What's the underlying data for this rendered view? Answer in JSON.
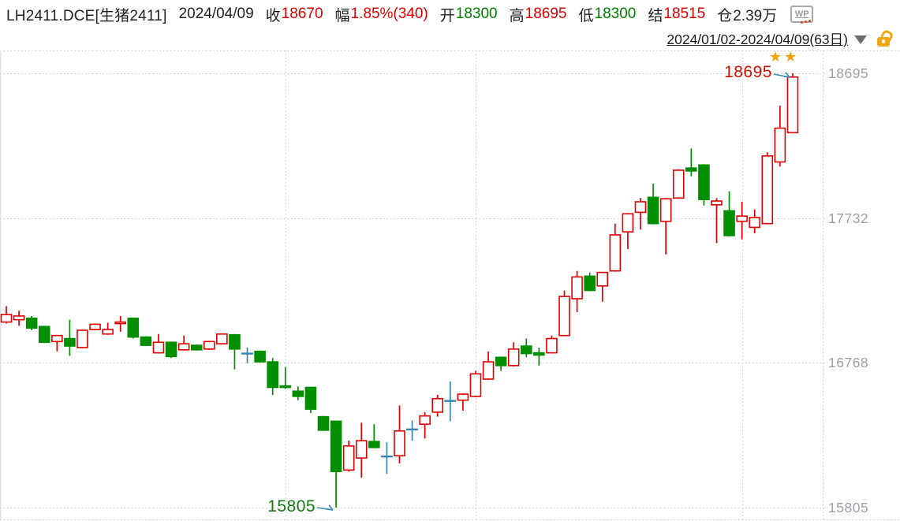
{
  "header": {
    "symbol": "LH2411.DCE[生猪2411]",
    "date": "2024/04/09",
    "fields": [
      {
        "label": "收",
        "value": "18670",
        "color": "#e10000"
      },
      {
        "label": "幅",
        "value": "1.85%(340)",
        "color": "#e10000"
      },
      {
        "label": "开",
        "value": "18300",
        "color": "#008000"
      },
      {
        "label": "高",
        "value": "18695",
        "color": "#e10000"
      },
      {
        "label": "低",
        "value": "18300",
        "color": "#008000"
      },
      {
        "label": "结",
        "value": "18515",
        "color": "#e10000"
      },
      {
        "label": "仓",
        "value": "2.39万",
        "color": "#222222"
      }
    ],
    "wp_label": "WP"
  },
  "toolbar": {
    "range": "2024/01/02-2024/04/09(63日)"
  },
  "chart_data": {
    "type": "candlestick",
    "title": "LH2411.DCE 生猪2411 日K线 2024/01/02-2024/04/09 (63日)",
    "y_ticks": [
      "18695",
      "17732",
      "16768",
      "15805"
    ],
    "ylim": [
      15805,
      18695
    ],
    "grid": "dotted",
    "legend_position": "none",
    "colors": {
      "up": "#e10000",
      "down": "#008f00",
      "flat": "#3585b5",
      "grid": "#c6c6c6",
      "axis_text": "#9aa0a8",
      "arrow": "#3585b5"
    },
    "month_grid_indices": [
      22,
      37,
      58
    ],
    "candle_format": [
      "open",
      "high",
      "low",
      "close",
      "direction(u=up-red,d=down-green,e=flat-blue)"
    ],
    "candles": [
      [
        17040,
        17145,
        17030,
        17090,
        "u"
      ],
      [
        17055,
        17115,
        17015,
        17080,
        "u"
      ],
      [
        17065,
        17080,
        16985,
        17000,
        "d"
      ],
      [
        17010,
        17015,
        16900,
        16905,
        "d"
      ],
      [
        16910,
        16950,
        16845,
        16950,
        "u"
      ],
      [
        16930,
        17055,
        16815,
        16880,
        "d"
      ],
      [
        16870,
        16990,
        16865,
        16985,
        "u"
      ],
      [
        16990,
        17030,
        16985,
        17025,
        "u"
      ],
      [
        16960,
        17035,
        16955,
        16990,
        "u"
      ],
      [
        17030,
        17080,
        16975,
        17040,
        "u"
      ],
      [
        17065,
        17070,
        16930,
        16940,
        "d"
      ],
      [
        16940,
        16945,
        16880,
        16885,
        "d"
      ],
      [
        16835,
        16960,
        16830,
        16905,
        "u"
      ],
      [
        16905,
        16910,
        16800,
        16810,
        "d"
      ],
      [
        16855,
        16950,
        16850,
        16895,
        "u"
      ],
      [
        16885,
        16890,
        16850,
        16855,
        "d"
      ],
      [
        16860,
        16915,
        16855,
        16910,
        "u"
      ],
      [
        16895,
        16965,
        16890,
        16960,
        "u"
      ],
      [
        16955,
        16960,
        16725,
        16860,
        "d"
      ],
      [
        16830,
        16870,
        16765,
        16830,
        "e"
      ],
      [
        16845,
        16850,
        16770,
        16775,
        "d"
      ],
      [
        16775,
        16800,
        16555,
        16605,
        "d"
      ],
      [
        16615,
        16740,
        16595,
        16605,
        "d"
      ],
      [
        16580,
        16610,
        16520,
        16545,
        "d"
      ],
      [
        16605,
        16610,
        16435,
        16460,
        "d"
      ],
      [
        16410,
        16415,
        16315,
        16320,
        "d"
      ],
      [
        16380,
        16385,
        15805,
        16045,
        "d"
      ],
      [
        16055,
        16250,
        16045,
        16215,
        "u"
      ],
      [
        16135,
        16370,
        16005,
        16250,
        "u"
      ],
      [
        16245,
        16360,
        16200,
        16205,
        "d"
      ],
      [
        16145,
        16240,
        16030,
        16145,
        "e"
      ],
      [
        16150,
        16485,
        16100,
        16315,
        "u"
      ],
      [
        16325,
        16385,
        16250,
        16325,
        "e"
      ],
      [
        16360,
        16440,
        16265,
        16415,
        "u"
      ],
      [
        16440,
        16555,
        16410,
        16530,
        "u"
      ],
      [
        16515,
        16645,
        16380,
        16515,
        "e"
      ],
      [
        16520,
        16565,
        16450,
        16560,
        "u"
      ],
      [
        16545,
        16715,
        16540,
        16695,
        "u"
      ],
      [
        16660,
        16845,
        16655,
        16775,
        "u"
      ],
      [
        16805,
        16810,
        16715,
        16750,
        "d"
      ],
      [
        16750,
        16905,
        16745,
        16860,
        "u"
      ],
      [
        16880,
        16930,
        16805,
        16830,
        "d"
      ],
      [
        16835,
        16870,
        16750,
        16820,
        "d"
      ],
      [
        16835,
        16950,
        16830,
        16930,
        "u"
      ],
      [
        16950,
        17250,
        16945,
        17210,
        "u"
      ],
      [
        17195,
        17380,
        17105,
        17340,
        "u"
      ],
      [
        17345,
        17370,
        17245,
        17250,
        "d"
      ],
      [
        17280,
        17370,
        17175,
        17370,
        "u"
      ],
      [
        17380,
        17695,
        17375,
        17620,
        "u"
      ],
      [
        17640,
        17765,
        17525,
        17760,
        "u"
      ],
      [
        17770,
        17865,
        17655,
        17840,
        "u"
      ],
      [
        17870,
        17960,
        17690,
        17695,
        "d"
      ],
      [
        17710,
        17865,
        17490,
        17860,
        "u"
      ],
      [
        17865,
        18055,
        17860,
        18050,
        "u"
      ],
      [
        18065,
        18195,
        18010,
        18045,
        "d"
      ],
      [
        18085,
        18090,
        17815,
        17855,
        "d"
      ],
      [
        17820,
        17865,
        17565,
        17845,
        "u"
      ],
      [
        17780,
        17910,
        17610,
        17615,
        "d"
      ],
      [
        17710,
        17840,
        17590,
        17745,
        "u"
      ],
      [
        17670,
        17790,
        17630,
        17735,
        "u"
      ],
      [
        17695,
        18170,
        17690,
        18145,
        "u"
      ],
      [
        18105,
        18480,
        18075,
        18330,
        "u"
      ],
      [
        18300,
        18695,
        18300,
        18670,
        "u"
      ]
    ],
    "annotations": [
      {
        "text": "18695",
        "price": 18695,
        "candle_index": 62,
        "side": "high",
        "color": "#cc1100"
      },
      {
        "text": "15805",
        "price": 15805,
        "candle_index": 26,
        "side": "low",
        "color": "#0f7d0f"
      }
    ],
    "stars": {
      "glyph": "★",
      "count": 2,
      "color": "#f1a207"
    }
  }
}
